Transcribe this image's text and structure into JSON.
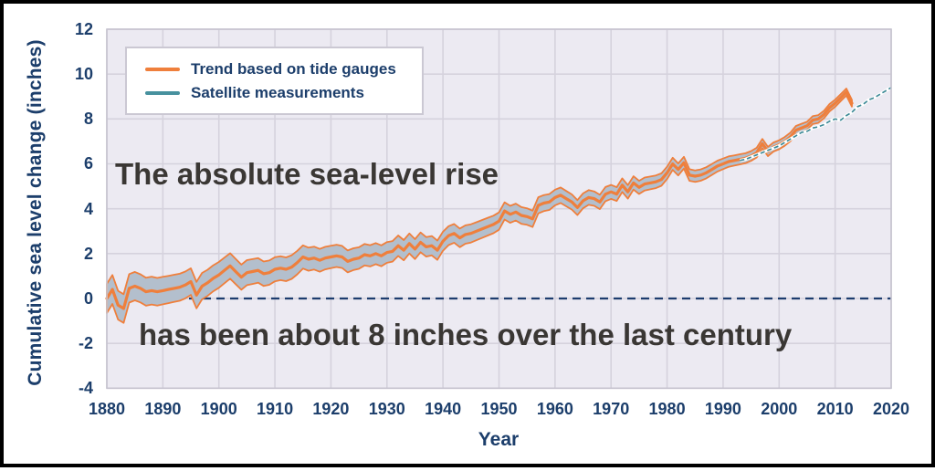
{
  "chart_data": {
    "type": "line",
    "ylabel": "Cumulative sea level change (inches)",
    "xlabel": "Year",
    "xlim": [
      1880,
      2020
    ],
    "ylim": [
      -4,
      12
    ],
    "xticks": [
      1880,
      1890,
      1900,
      1910,
      1920,
      1930,
      1940,
      1950,
      1960,
      1970,
      1980,
      1990,
      2000,
      2010,
      2020
    ],
    "yticks": [
      12,
      10,
      8,
      6,
      4,
      2,
      0,
      -2,
      -4
    ],
    "grid": true,
    "colors": {
      "plot_background": "#eceaf2",
      "gridline": "#d5d2dd",
      "plot_border": "#c6c3cf",
      "axis_text": "#1c3e6b",
      "overlay_text": "#3a3734",
      "tide_line": "#ef7f3c",
      "band_fill": "#b3bfcd",
      "satellite_line": "#3e8a97",
      "satellite_casing": "#ffffff",
      "zero_line": "#1d3c6e"
    },
    "zero_line": {
      "value": 0,
      "style": "dashed",
      "color": "#1d3c6e"
    },
    "legend": {
      "position": "top-left",
      "entries": [
        {
          "label": "Trend based on tide gauges",
          "color": "#ef7f3c"
        },
        {
          "label": "Satellite measurements",
          "color": "#47919e"
        }
      ]
    },
    "annotations": [
      {
        "text": "The absolute sea-level rise"
      },
      {
        "text": "has been about 8 inches over the last century"
      }
    ],
    "series": [
      {
        "name": "Trend based on tide gauges",
        "style": "solid-with-uncertainty-band",
        "color": "#ef7f3c",
        "band_fill": "#b3bfcd",
        "band_halfwidth_start": 0.65,
        "band_halfwidth_end": 0.15,
        "x_start": 1880,
        "x_step": 1,
        "values": [
          0.0,
          0.4,
          -0.3,
          -0.45,
          0.45,
          0.55,
          0.45,
          0.3,
          0.35,
          0.3,
          0.35,
          0.4,
          0.45,
          0.5,
          0.6,
          0.75,
          0.15,
          0.55,
          0.7,
          0.9,
          1.05,
          1.25,
          1.45,
          1.2,
          0.95,
          1.15,
          1.2,
          1.25,
          1.1,
          1.15,
          1.3,
          1.35,
          1.3,
          1.4,
          1.6,
          1.85,
          1.75,
          1.8,
          1.7,
          1.8,
          1.85,
          1.9,
          1.85,
          1.65,
          1.75,
          1.8,
          1.95,
          1.9,
          2.0,
          1.9,
          2.05,
          2.1,
          2.35,
          2.15,
          2.45,
          2.2,
          2.5,
          2.3,
          2.35,
          2.15,
          2.55,
          2.8,
          2.9,
          2.7,
          2.85,
          2.9,
          3.0,
          3.1,
          3.2,
          3.3,
          3.45,
          3.9,
          3.75,
          3.85,
          3.7,
          3.65,
          3.55,
          4.15,
          4.25,
          4.3,
          4.5,
          4.6,
          4.45,
          4.3,
          4.05,
          4.35,
          4.5,
          4.45,
          4.3,
          4.65,
          4.75,
          4.65,
          5.05,
          4.75,
          5.15,
          4.95,
          5.1,
          5.15,
          5.2,
          5.3,
          5.6,
          6.0,
          5.75,
          6.05,
          5.5,
          5.45,
          5.5,
          5.6,
          5.75,
          5.9,
          6.0,
          6.1,
          6.15,
          6.2,
          6.25,
          6.35,
          6.5,
          6.9,
          6.55,
          6.75,
          6.85,
          7.0,
          7.2,
          7.5,
          7.6,
          7.7,
          7.95,
          8.0,
          8.2,
          8.5,
          8.7,
          8.95,
          9.2,
          8.7
        ]
      },
      {
        "name": "Satellite measurements",
        "style": "dashed-with-white-casing",
        "color": "#3e8a97",
        "x_start": 1993,
        "x_step": 1,
        "values": [
          6.15,
          6.2,
          6.3,
          6.4,
          6.5,
          6.6,
          6.7,
          6.8,
          6.95,
          7.1,
          7.25,
          7.4,
          7.45,
          7.6,
          7.65,
          7.75,
          7.9,
          8.0,
          7.95,
          8.15,
          8.3,
          8.55,
          8.65,
          8.85,
          8.95,
          9.1,
          9.25,
          9.4
        ]
      }
    ]
  }
}
